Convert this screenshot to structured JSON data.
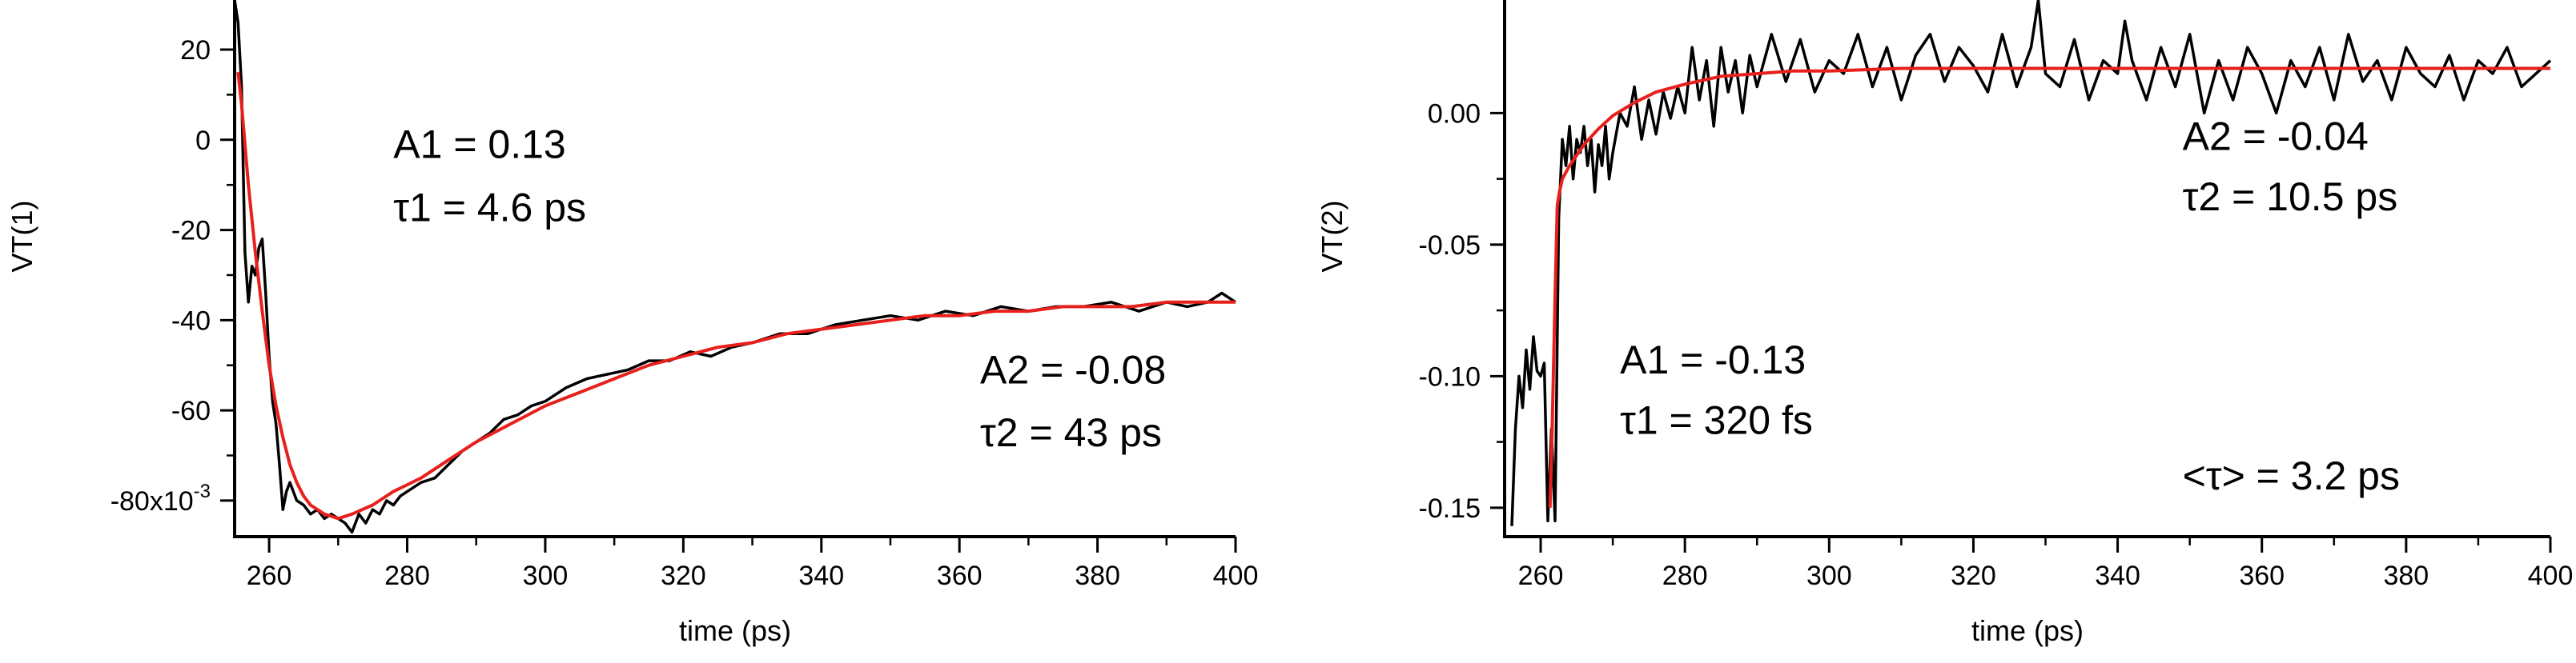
{
  "chart_data": [
    {
      "type": "line",
      "ylabel": "VT(1)",
      "xlabel": "time (ps)",
      "xlim": [
        255,
        400
      ],
      "ylim": [
        -0.088,
        0.031
      ],
      "x_ticks": [
        260,
        280,
        300,
        320,
        340,
        360,
        380,
        400
      ],
      "y_ticks": [
        {
          "value": 0.02,
          "label": "20"
        },
        {
          "value": 0.0,
          "label": "0"
        },
        {
          "value": -0.02,
          "label": "-20"
        },
        {
          "value": -0.04,
          "label": "-40"
        },
        {
          "value": -0.06,
          "label": "-60"
        },
        {
          "value": -0.08,
          "label": "-80x10",
          "exponent": "-3"
        }
      ],
      "grid": false,
      "series": [
        {
          "role": "data",
          "color": "#000000",
          "x": [
            255,
            255.5,
            256,
            256.5,
            257,
            257.5,
            258,
            258.5,
            259,
            259.5,
            260,
            260.5,
            261,
            261.5,
            262,
            262.5,
            263,
            264,
            265,
            266,
            267,
            268,
            269,
            270,
            271,
            272,
            273,
            274,
            275,
            276,
            277,
            278,
            279,
            280,
            282,
            284,
            286,
            288,
            290,
            292,
            294,
            296,
            298,
            300,
            303,
            306,
            309,
            312,
            315,
            318,
            321,
            324,
            327,
            330,
            334,
            338,
            342,
            346,
            350,
            354,
            358,
            362,
            366,
            370,
            374,
            378,
            382,
            386,
            390,
            393,
            396,
            398,
            400
          ],
          "y": [
            0.031,
            0.026,
            0.012,
            -0.025,
            -0.036,
            -0.028,
            -0.03,
            -0.024,
            -0.022,
            -0.034,
            -0.048,
            -0.058,
            -0.063,
            -0.072,
            -0.082,
            -0.078,
            -0.076,
            -0.08,
            -0.081,
            -0.083,
            -0.082,
            -0.084,
            -0.083,
            -0.084,
            -0.085,
            -0.087,
            -0.083,
            -0.085,
            -0.082,
            -0.083,
            -0.08,
            -0.081,
            -0.079,
            -0.078,
            -0.076,
            -0.075,
            -0.072,
            -0.069,
            -0.067,
            -0.065,
            -0.062,
            -0.061,
            -0.059,
            -0.058,
            -0.055,
            -0.053,
            -0.052,
            -0.051,
            -0.049,
            -0.049,
            -0.047,
            -0.048,
            -0.046,
            -0.045,
            -0.043,
            -0.043,
            -0.041,
            -0.04,
            -0.039,
            -0.04,
            -0.038,
            -0.039,
            -0.037,
            -0.038,
            -0.037,
            -0.037,
            -0.036,
            -0.038,
            -0.036,
            -0.037,
            -0.036,
            -0.034,
            -0.036
          ]
        },
        {
          "role": "fit",
          "color": "#e8201c",
          "x": [
            255.5,
            256,
            257,
            258,
            259,
            260,
            261,
            262,
            263,
            264,
            265,
            266,
            268,
            270,
            272,
            275,
            278,
            282,
            286,
            290,
            295,
            300,
            305,
            310,
            315,
            320,
            325,
            330,
            335,
            340,
            345,
            350,
            355,
            360,
            365,
            370,
            375,
            380,
            385,
            390,
            395,
            400
          ],
          "y": [
            0.015,
            0.008,
            -0.01,
            -0.025,
            -0.038,
            -0.05,
            -0.059,
            -0.066,
            -0.072,
            -0.076,
            -0.079,
            -0.081,
            -0.083,
            -0.084,
            -0.083,
            -0.081,
            -0.078,
            -0.075,
            -0.071,
            -0.067,
            -0.063,
            -0.059,
            -0.056,
            -0.053,
            -0.05,
            -0.048,
            -0.046,
            -0.045,
            -0.043,
            -0.042,
            -0.041,
            -0.04,
            -0.039,
            -0.039,
            -0.038,
            -0.038,
            -0.037,
            -0.037,
            -0.037,
            -0.036,
            -0.036,
            -0.036
          ]
        }
      ],
      "annotations": [
        {
          "text": "A1 = 0.13",
          "x": 278,
          "y": -0.004
        },
        {
          "text": "τ1 = 4.6 ps",
          "x": 278,
          "y": -0.018
        },
        {
          "text": "A2 = -0.08",
          "x": 363,
          "y": -0.054
        },
        {
          "text": "τ2 = 43 ps",
          "x": 363,
          "y": -0.068
        }
      ]
    },
    {
      "type": "line",
      "ylabel": "VT(2)",
      "xlabel": "time (ps)",
      "xlim": [
        255,
        400
      ],
      "ylim": [
        -0.161,
        0.043
      ],
      "x_ticks": [
        260,
        280,
        300,
        320,
        340,
        360,
        380,
        400
      ],
      "y_ticks": [
        {
          "value": 0.0,
          "label": "0.00"
        },
        {
          "value": -0.05,
          "label": "-0.05"
        },
        {
          "value": -0.1,
          "label": "-0.10"
        },
        {
          "value": -0.15,
          "label": "-0.15"
        }
      ],
      "grid": false,
      "series": [
        {
          "role": "data",
          "color": "#000000",
          "x": [
            256,
            256.5,
            257,
            257.5,
            258,
            258.5,
            259,
            259.5,
            260,
            260.5,
            261,
            261.5,
            262,
            262.5,
            263,
            263.5,
            264,
            264.5,
            265,
            265.5,
            266,
            266.5,
            267,
            267.5,
            268,
            268.5,
            269,
            269.5,
            270,
            271,
            272,
            273,
            274,
            275,
            276,
            277,
            278,
            279,
            280,
            281,
            282,
            283,
            284,
            285,
            286,
            287,
            288,
            289,
            290,
            292,
            294,
            296,
            298,
            300,
            302,
            304,
            306,
            308,
            310,
            312,
            314,
            316,
            318,
            320,
            322,
            324,
            326,
            328,
            329,
            330,
            332,
            334,
            336,
            338,
            340,
            341,
            342,
            344,
            346,
            348,
            350,
            352,
            354,
            356,
            358,
            360,
            362,
            364,
            366,
            368,
            370,
            372,
            374,
            376,
            378,
            380,
            382,
            384,
            386,
            388,
            390,
            392,
            394,
            396,
            398,
            400
          ],
          "y": [
            -0.157,
            -0.12,
            -0.1,
            -0.112,
            -0.09,
            -0.105,
            -0.085,
            -0.098,
            -0.1,
            -0.095,
            -0.155,
            -0.12,
            -0.155,
            -0.04,
            -0.01,
            -0.02,
            -0.005,
            -0.025,
            -0.01,
            -0.015,
            -0.005,
            -0.02,
            -0.01,
            -0.03,
            -0.012,
            -0.02,
            -0.005,
            -0.025,
            -0.015,
            0.0,
            -0.005,
            0.01,
            -0.01,
            0.005,
            -0.008,
            0.008,
            -0.002,
            0.01,
            0.0,
            0.025,
            0.005,
            0.02,
            -0.005,
            0.025,
            0.008,
            0.02,
            0.0,
            0.022,
            0.01,
            0.03,
            0.012,
            0.028,
            0.008,
            0.02,
            0.015,
            0.03,
            0.01,
            0.025,
            0.005,
            0.022,
            0.03,
            0.012,
            0.025,
            0.018,
            0.008,
            0.03,
            0.01,
            0.025,
            0.043,
            0.015,
            0.01,
            0.028,
            0.005,
            0.02,
            0.015,
            0.035,
            0.02,
            0.005,
            0.025,
            0.01,
            0.03,
            0.0,
            0.02,
            0.005,
            0.025,
            0.015,
            0.0,
            0.02,
            0.01,
            0.025,
            0.005,
            0.03,
            0.012,
            0.02,
            0.005,
            0.025,
            0.015,
            0.01,
            0.022,
            0.005,
            0.02,
            0.015,
            0.025,
            0.01,
            0.015,
            0.02
          ]
        },
        {
          "role": "fit",
          "color": "#e8201c",
          "x": [
            261.3,
            261.6,
            262,
            262.3,
            262.6,
            263,
            264,
            265,
            266,
            268,
            270,
            273,
            276,
            280,
            285,
            290,
            295,
            300,
            310,
            320,
            330,
            340,
            360,
            380,
            400
          ],
          "y": [
            -0.15,
            -0.12,
            -0.07,
            -0.035,
            -0.03,
            -0.025,
            -0.02,
            -0.016,
            -0.012,
            -0.006,
            -0.001,
            0.004,
            0.008,
            0.011,
            0.014,
            0.015,
            0.016,
            0.016,
            0.017,
            0.017,
            0.017,
            0.017,
            0.017,
            0.017,
            0.017
          ]
        }
      ],
      "annotations": [
        {
          "text": "A2 = -0.04",
          "x": 349,
          "y": -0.014
        },
        {
          "text": "τ2 = 10.5 ps",
          "x": 349,
          "y": -0.037
        },
        {
          "text": "A1 = -0.13",
          "x": 271,
          "y": -0.099
        },
        {
          "text": "τ1 = 320 fs",
          "x": 271,
          "y": -0.122
        },
        {
          "text": "<τ> = 3.2 ps",
          "x": 349,
          "y": -0.143
        }
      ]
    }
  ]
}
